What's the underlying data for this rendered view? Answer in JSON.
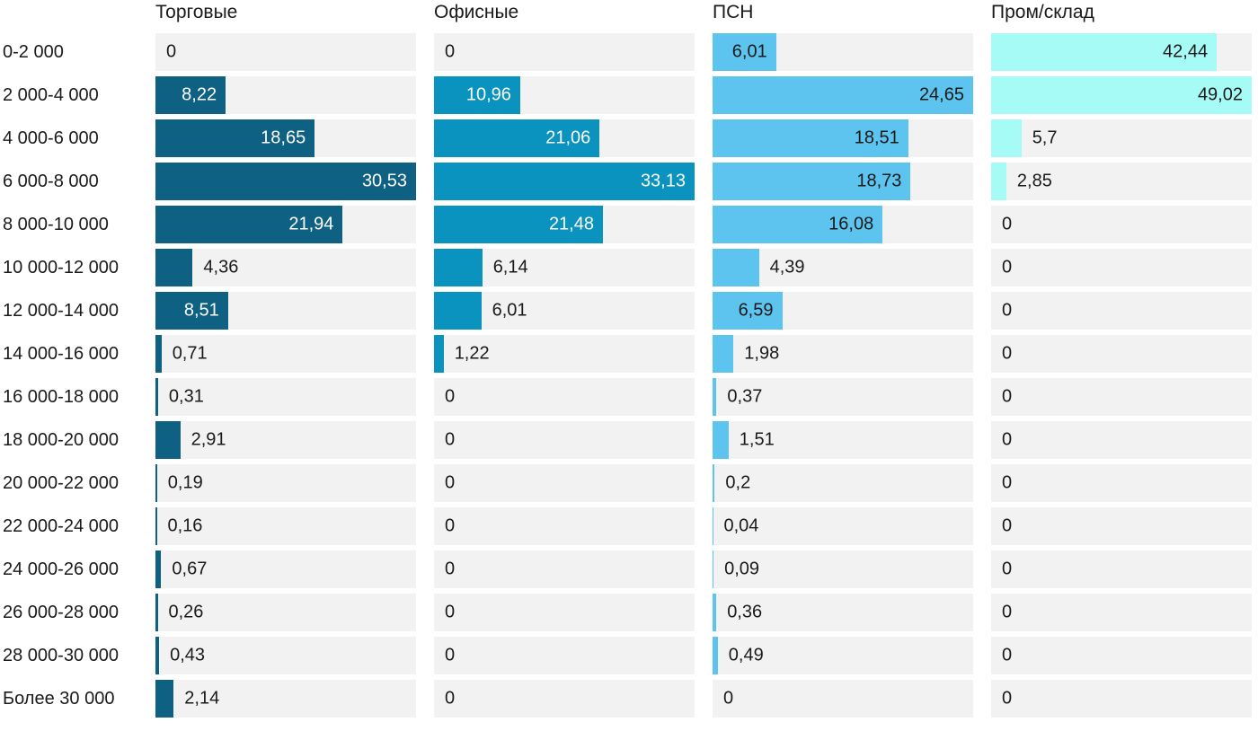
{
  "chart_data": {
    "type": "bar",
    "orientation": "horizontal",
    "title": "",
    "xlabel": "",
    "ylabel": "",
    "legend_position": "column-headers-top",
    "grid": false,
    "normalization": "per_column_max",
    "value_format": "comma_decimal",
    "categories": [
      "0-2 000",
      "2 000-4 000",
      "4 000-6 000",
      "6 000-8 000",
      "8 000-10 000",
      "10 000-12 000",
      "12 000-14 000",
      "14 000-16 000",
      "16 000-18 000",
      "18 000-20 000",
      "20 000-22 000",
      "22 000-24 000",
      "24 000-26 000",
      "26 000-28 000",
      "28 000-30 000",
      "Более 30 000"
    ],
    "series": [
      {
        "name": "Торговые",
        "bar_color": "#0f6183",
        "label_color_inside": "#ffffff",
        "values": [
          0,
          8.22,
          18.65,
          30.53,
          21.94,
          4.36,
          8.51,
          0.71,
          0.31,
          2.91,
          0.19,
          0.16,
          0.67,
          0.26,
          0.43,
          2.14
        ]
      },
      {
        "name": "Офисные",
        "bar_color": "#0a93bf",
        "label_color_inside": "#ffffff",
        "values": [
          0,
          10.96,
          21.06,
          33.13,
          21.48,
          6.14,
          6.01,
          1.22,
          0,
          0,
          0,
          0,
          0,
          0,
          0,
          0
        ]
      },
      {
        "name": "ПСН",
        "bar_color": "#5cc4ee",
        "label_color_inside": "#1a1a1a",
        "values": [
          6.01,
          24.65,
          18.51,
          18.73,
          16.08,
          4.39,
          6.59,
          1.98,
          0.37,
          1.51,
          0.2,
          0.04,
          0.09,
          0.36,
          0.49,
          0
        ]
      },
      {
        "name": "Пром/склад",
        "bar_color": "#a6fbf7",
        "label_color_inside": "#1a1a1a",
        "values": [
          42.44,
          49.02,
          5.7,
          2.85,
          0,
          0,
          0,
          0,
          0,
          0,
          0,
          0,
          0,
          0,
          0,
          0
        ]
      }
    ],
    "colors": {
      "track": "#f2f2f2",
      "text": "#1a1a1a",
      "background": "#ffffff"
    }
  }
}
